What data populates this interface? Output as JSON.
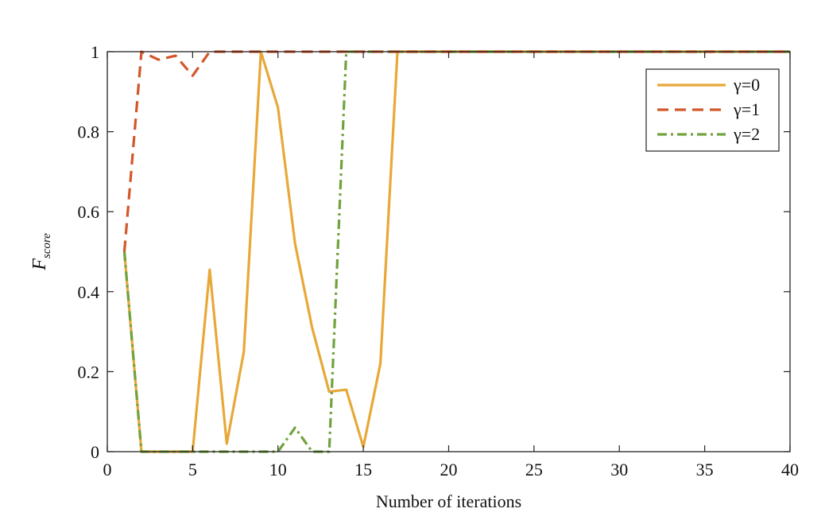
{
  "chart_data": {
    "type": "line",
    "xlabel": "Number of iterations",
    "ylabel": "F",
    "ylabel_subscript": "score",
    "xlim": [
      0,
      40
    ],
    "ylim": [
      0,
      1
    ],
    "xticks": [
      "0",
      "5",
      "10",
      "15",
      "20",
      "25",
      "30",
      "35",
      "40"
    ],
    "yticks": [
      "0",
      "0.2",
      "0.4",
      "0.6",
      "0.8",
      "1"
    ],
    "grid": false,
    "legend_position": "top-right",
    "x": [
      1,
      2,
      3,
      4,
      5,
      6,
      7,
      8,
      9,
      10,
      11,
      12,
      13,
      14,
      15,
      16,
      17,
      18,
      19,
      20,
      21,
      22,
      23,
      24,
      25,
      26,
      27,
      28,
      29,
      30,
      31,
      32,
      33,
      34,
      35,
      36,
      37,
      38,
      39,
      40
    ],
    "series": [
      {
        "name": "γ=0",
        "color": "#E8A838",
        "style": "solid",
        "values": [
          0.5,
          0.0,
          0.0,
          0.0,
          0.0,
          0.455,
          0.02,
          0.25,
          1.0,
          0.86,
          0.52,
          0.31,
          0.15,
          0.155,
          0.012,
          0.22,
          1.0,
          1.0,
          1.0,
          1.0,
          1.0,
          1.0,
          1.0,
          1.0,
          1.0,
          1.0,
          1.0,
          1.0,
          1.0,
          1.0,
          1.0,
          1.0,
          1.0,
          1.0,
          1.0,
          1.0,
          1.0,
          1.0,
          1.0,
          1.0
        ]
      },
      {
        "name": "γ=1",
        "color": "#D2572A",
        "style": "dashed",
        "values": [
          0.5,
          1.0,
          0.98,
          0.99,
          0.94,
          1.0,
          1.0,
          1.0,
          1.0,
          1.0,
          1.0,
          1.0,
          1.0,
          1.0,
          1.0,
          1.0,
          1.0,
          1.0,
          1.0,
          1.0,
          1.0,
          1.0,
          1.0,
          1.0,
          1.0,
          1.0,
          1.0,
          1.0,
          1.0,
          1.0,
          1.0,
          1.0,
          1.0,
          1.0,
          1.0,
          1.0,
          1.0,
          1.0,
          1.0,
          1.0
        ]
      },
      {
        "name": "γ=2",
        "color": "#71A23E",
        "style": "dashdot",
        "values": [
          0.5,
          0.0,
          0.0,
          0.0,
          0.0,
          0.0,
          0.0,
          0.0,
          0.0,
          0.0,
          0.06,
          0.0,
          0.0,
          1.0,
          1.0,
          1.0,
          1.0,
          1.0,
          1.0,
          1.0,
          1.0,
          1.0,
          1.0,
          1.0,
          1.0,
          1.0,
          1.0,
          1.0,
          1.0,
          1.0,
          1.0,
          1.0,
          1.0,
          1.0,
          1.0,
          1.0,
          1.0,
          1.0,
          1.0,
          1.0
        ]
      }
    ]
  }
}
